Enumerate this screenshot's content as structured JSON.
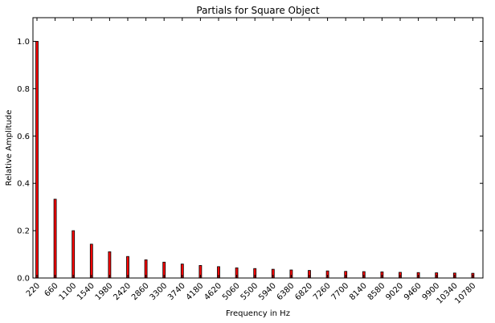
{
  "chart_data": {
    "type": "bar",
    "title": "Partials for Square Object",
    "xlabel": "Frequency in Hz",
    "ylabel": "Relative Amplitude",
    "ylim": [
      0,
      1.1
    ],
    "yticks": [
      "0.0",
      "0.2",
      "0.4",
      "0.6",
      "0.8",
      "1.0"
    ],
    "grid": false,
    "legend": "none",
    "bar_color": "#ff0000",
    "bar_edge_color": "#000000",
    "categories": [
      "220",
      "660",
      "1100",
      "1540",
      "1980",
      "2420",
      "2860",
      "3300",
      "3740",
      "4180",
      "4620",
      "5060",
      "5500",
      "5940",
      "6380",
      "6820",
      "7260",
      "7700",
      "8140",
      "8580",
      "9020",
      "9460",
      "9900",
      "10340",
      "10780"
    ],
    "values": [
      1.0,
      0.333,
      0.2,
      0.143,
      0.111,
      0.091,
      0.077,
      0.067,
      0.059,
      0.053,
      0.048,
      0.043,
      0.04,
      0.037,
      0.034,
      0.032,
      0.03,
      0.028,
      0.027,
      0.026,
      0.024,
      0.023,
      0.022,
      0.021,
      0.02
    ]
  }
}
